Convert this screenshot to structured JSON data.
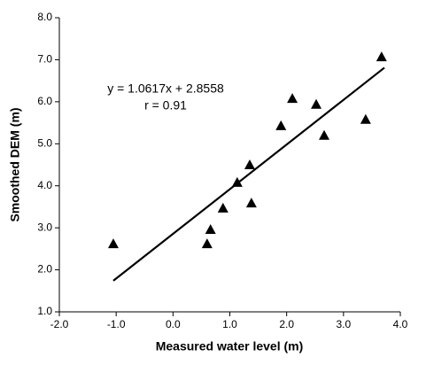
{
  "chart_data": {
    "type": "scatter",
    "x_label": "Measured water level (m)",
    "y_label": "Smoothed DEM (m)",
    "annotations": [
      "y = 1.0617x + 2.8558",
      "r = 0.91"
    ],
    "series": [
      {
        "color": "#000000",
        "x": [
          -1.05,
          0.6,
          0.66,
          0.88,
          1.13,
          1.35,
          1.38,
          1.9,
          2.1,
          2.52,
          2.66,
          3.39,
          3.67
        ],
        "values": [
          2.62,
          2.62,
          2.96,
          3.47,
          4.08,
          4.5,
          3.59,
          5.43,
          6.08,
          5.94,
          5.2,
          5.58,
          7.07
        ]
      }
    ],
    "trendline": {
      "color": "#000000",
      "x": [
        -1.05,
        3.72
      ],
      "values": [
        1.74,
        6.81
      ]
    },
    "xlim": [
      -2,
      4
    ],
    "xticks": [
      {
        "value": -2,
        "label": "-2.0"
      },
      {
        "value": -1,
        "label": "-1.0"
      },
      {
        "value": 0,
        "label": "0.0"
      },
      {
        "value": 1,
        "label": "1.0"
      },
      {
        "value": 2,
        "label": "2.0"
      },
      {
        "value": 3,
        "label": "3.0"
      },
      {
        "value": 4,
        "label": "4.0"
      }
    ],
    "ylim": [
      1,
      8
    ],
    "yticks": [
      {
        "value": 1,
        "label": "1.0"
      },
      {
        "value": 2,
        "label": "2.0"
      },
      {
        "value": 3,
        "label": "3.0"
      },
      {
        "value": 4,
        "label": "4.0"
      },
      {
        "value": 5,
        "label": "5.0"
      },
      {
        "value": 6,
        "label": "6.0"
      },
      {
        "value": 7,
        "label": "7.0"
      },
      {
        "value": 8,
        "label": "8.0"
      }
    ],
    "grid": false
  }
}
